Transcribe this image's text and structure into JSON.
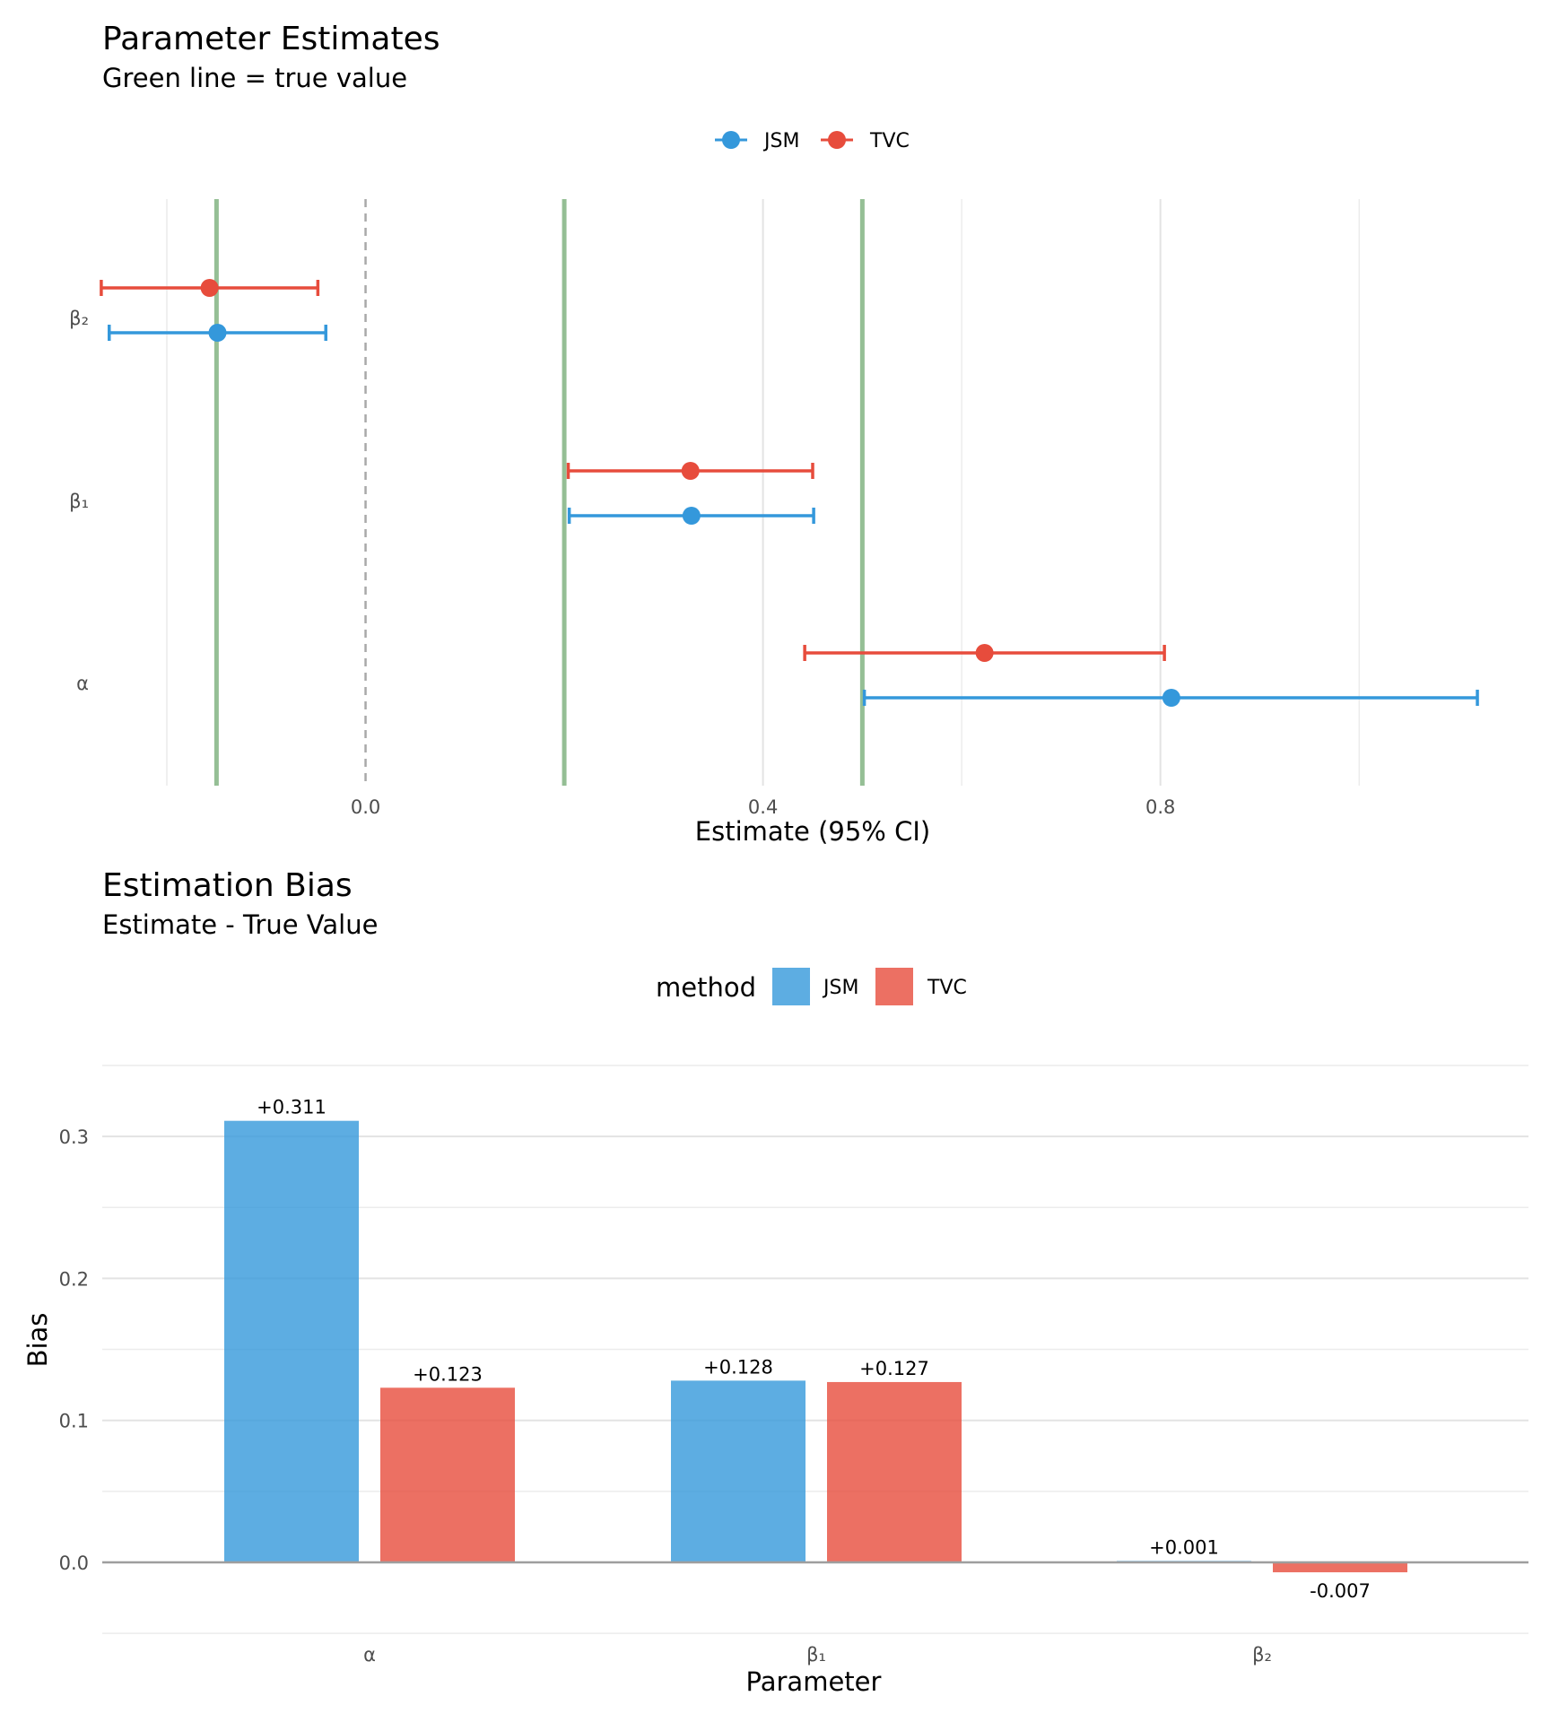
{
  "colors": {
    "JSM": "#3498db",
    "TVC": "#e74c3c",
    "true_line": "#8fbc8f"
  },
  "chart_data": [
    {
      "type": "forest",
      "title": "Parameter Estimates",
      "subtitle": "Green line = true value",
      "xlabel": "Estimate (95% CI)",
      "ylabel": "",
      "xlim": [
        -0.265,
        1.165
      ],
      "x_ticks": [
        0.0,
        0.4,
        0.8
      ],
      "x_tick_labels": [
        "0.0",
        "0.4",
        "0.8"
      ],
      "x_minor_gridlines": [
        -0.2,
        0.2,
        0.6,
        1.0
      ],
      "reference_line": 0,
      "legend_position": "top",
      "categories": [
        "β₂",
        "β₁",
        "α"
      ],
      "true_values": [
        -0.15,
        0.2,
        0.5
      ],
      "series": [
        {
          "name": "JSM",
          "color": "#3498db",
          "estimates": [
            -0.149,
            0.328,
            0.811
          ],
          "lower": [
            -0.258,
            0.205,
            0.502
          ],
          "upper": [
            -0.04,
            0.451,
            1.119
          ]
        },
        {
          "name": "TVC",
          "color": "#e74c3c",
          "estimates": [
            -0.157,
            0.327,
            0.623
          ],
          "lower": [
            -0.266,
            0.204,
            0.442
          ],
          "upper": [
            -0.048,
            0.45,
            0.804
          ]
        }
      ]
    },
    {
      "type": "bar",
      "title": "Estimation Bias",
      "subtitle": "Estimate - True Value",
      "xlabel": "Parameter",
      "ylabel": "Bias",
      "ylim": [
        -0.05,
        0.35
      ],
      "y_ticks": [
        0.0,
        0.1,
        0.2,
        0.3
      ],
      "y_tick_labels": [
        "0.0",
        "0.1",
        "0.2",
        "0.3"
      ],
      "legend_title": "method",
      "legend_position": "top",
      "categories": [
        "α",
        "β₁",
        "β₂"
      ],
      "series": [
        {
          "name": "JSM",
          "color": "#3498db",
          "values": [
            0.311,
            0.128,
            0.001
          ],
          "labels": [
            "+0.311",
            "+0.128",
            "+0.001"
          ]
        },
        {
          "name": "TVC",
          "color": "#e74c3c",
          "values": [
            0.123,
            0.127,
            -0.007
          ],
          "labels": [
            "+0.123",
            "+0.127",
            "-0.007"
          ]
        }
      ]
    }
  ]
}
